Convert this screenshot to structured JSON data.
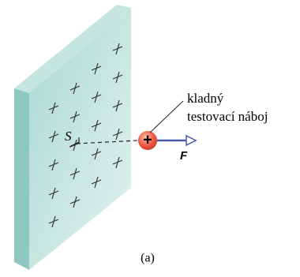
{
  "labels": {
    "callout_line1": "kladný",
    "callout_line2": "testovací náboj",
    "force": "F",
    "surface": "S",
    "charge_sign": "+",
    "caption": "(a)"
  }
}
